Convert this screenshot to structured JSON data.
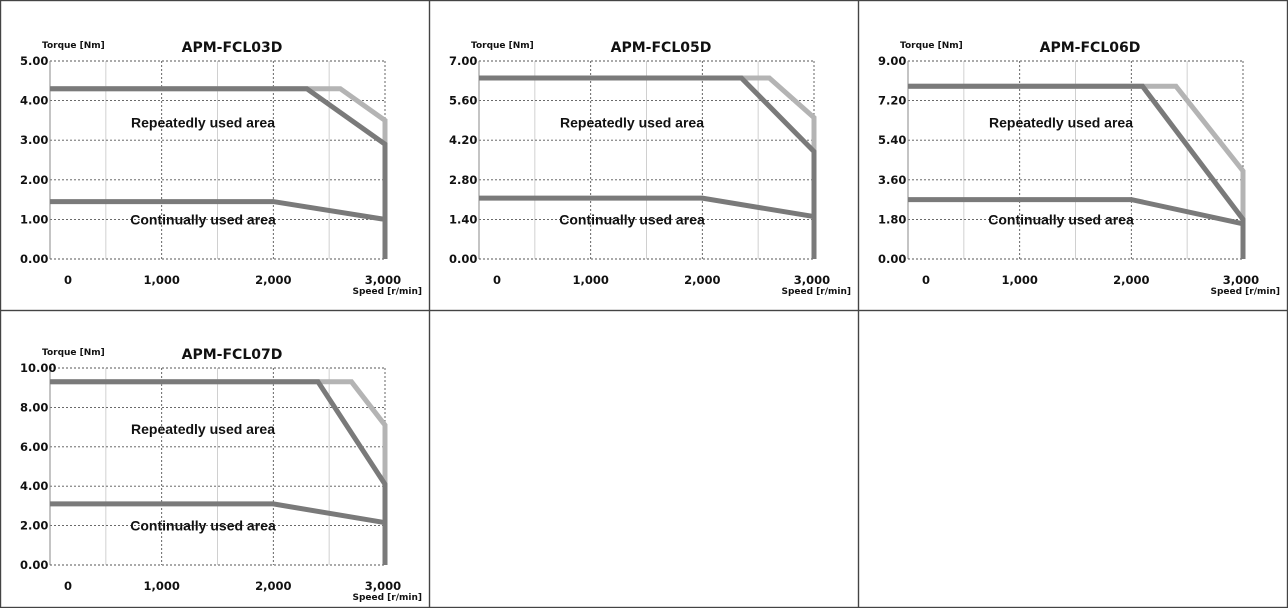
{
  "chart_data": [
    {
      "type": "line",
      "title": "APM-FCL03D",
      "ylabel": "Torque [Nm]",
      "xlabel": "Speed [r/min]",
      "xlim": [
        0,
        3000
      ],
      "ylim": [
        0,
        5
      ],
      "x_ticks": [
        "0",
        "1,000",
        "2,000",
        "3,000"
      ],
      "y_ticks": [
        "0.00",
        "1.00",
        "2.00",
        "3.00",
        "4.00",
        "5.00"
      ],
      "grid": true,
      "annotations": [
        "Repeatedly used area",
        "Continually used area"
      ],
      "series": [
        {
          "color": "#b4b4b4",
          "x": [
            0,
            2600,
            3000,
            3000
          ],
          "y": [
            4.3,
            4.3,
            3.5,
            0
          ]
        },
        {
          "color": "#1a1a1a",
          "x": [
            2300,
            3000
          ],
          "y": [
            4.3,
            2.9
          ]
        },
        {
          "color": "#7a7a7a",
          "x": [
            0,
            2300,
            3000,
            3000
          ],
          "y": [
            4.3,
            4.3,
            2.9,
            0
          ]
        },
        {
          "color": "#7a7a7a",
          "x": [
            0,
            2000,
            3000
          ],
          "y": [
            1.45,
            1.45,
            1.0
          ]
        }
      ]
    },
    {
      "type": "line",
      "title": "APM-FCL05D",
      "ylabel": "Torque [Nm]",
      "xlabel": "Speed [r/min]",
      "xlim": [
        0,
        3000
      ],
      "ylim": [
        0,
        7
      ],
      "x_ticks": [
        "0",
        "1,000",
        "2,000",
        "3,000"
      ],
      "y_ticks": [
        "0.00",
        "1.40",
        "2.80",
        "4.20",
        "5.60",
        "7.00"
      ],
      "grid": true,
      "annotations": [
        "Repeatedly used area",
        "Continually used area"
      ],
      "series": [
        {
          "color": "#b4b4b4",
          "x": [
            0,
            2600,
            3000,
            3000
          ],
          "y": [
            6.4,
            6.4,
            5.0,
            0
          ]
        },
        {
          "color": "#1a1a1a",
          "x": [
            2350,
            3000
          ],
          "y": [
            6.4,
            3.8
          ]
        },
        {
          "color": "#7a7a7a",
          "x": [
            0,
            2350,
            3000,
            3000
          ],
          "y": [
            6.4,
            6.4,
            3.8,
            0
          ]
        },
        {
          "color": "#7a7a7a",
          "x": [
            0,
            2000,
            3000
          ],
          "y": [
            2.15,
            2.15,
            1.5
          ]
        }
      ]
    },
    {
      "type": "line",
      "title": "APM-FCL06D",
      "ylabel": "Torque [Nm]",
      "xlabel": "Speed [r/min]",
      "xlim": [
        0,
        3000
      ],
      "ylim": [
        0,
        9
      ],
      "x_ticks": [
        "0",
        "1,000",
        "2,000",
        "3,000"
      ],
      "y_ticks": [
        "0.00",
        "1.80",
        "3.60",
        "5.40",
        "7.20",
        "9.00"
      ],
      "grid": true,
      "annotations": [
        "Repeatedly used area",
        "Continually used area"
      ],
      "series": [
        {
          "color": "#b4b4b4",
          "x": [
            0,
            2400,
            3000,
            3000
          ],
          "y": [
            7.85,
            7.85,
            4.0,
            0
          ]
        },
        {
          "color": "#1a1a1a",
          "x": [
            2100,
            3000
          ],
          "y": [
            7.85,
            1.8
          ]
        },
        {
          "color": "#7a7a7a",
          "x": [
            0,
            2100,
            3000,
            3000
          ],
          "y": [
            7.85,
            7.85,
            1.8,
            0
          ]
        },
        {
          "color": "#7a7a7a",
          "x": [
            0,
            2000,
            3000
          ],
          "y": [
            2.7,
            2.7,
            1.6
          ]
        }
      ]
    },
    {
      "type": "line",
      "title": "APM-FCL07D",
      "ylabel": "Torque [Nm]",
      "xlabel": "Speed [r/min]",
      "xlim": [
        0,
        3000
      ],
      "ylim": [
        0,
        10
      ],
      "x_ticks": [
        "0",
        "1,000",
        "2,000",
        "3,000"
      ],
      "y_ticks": [
        "0.00",
        "2.00",
        "4.00",
        "6.00",
        "8.00",
        "10.00"
      ],
      "grid": true,
      "annotations": [
        "Repeatedly used area",
        "Continually used area"
      ],
      "series": [
        {
          "color": "#b4b4b4",
          "x": [
            0,
            2700,
            3000,
            3000
          ],
          "y": [
            9.3,
            9.3,
            7.1,
            0
          ]
        },
        {
          "color": "#1a1a1a",
          "x": [
            2400,
            3000
          ],
          "y": [
            9.3,
            4.1
          ]
        },
        {
          "color": "#7a7a7a",
          "x": [
            0,
            2400,
            3000,
            3000
          ],
          "y": [
            9.3,
            9.3,
            4.1,
            0
          ]
        },
        {
          "color": "#7a7a7a",
          "x": [
            0,
            2000,
            3000
          ],
          "y": [
            3.1,
            3.1,
            2.15
          ]
        }
      ]
    }
  ]
}
